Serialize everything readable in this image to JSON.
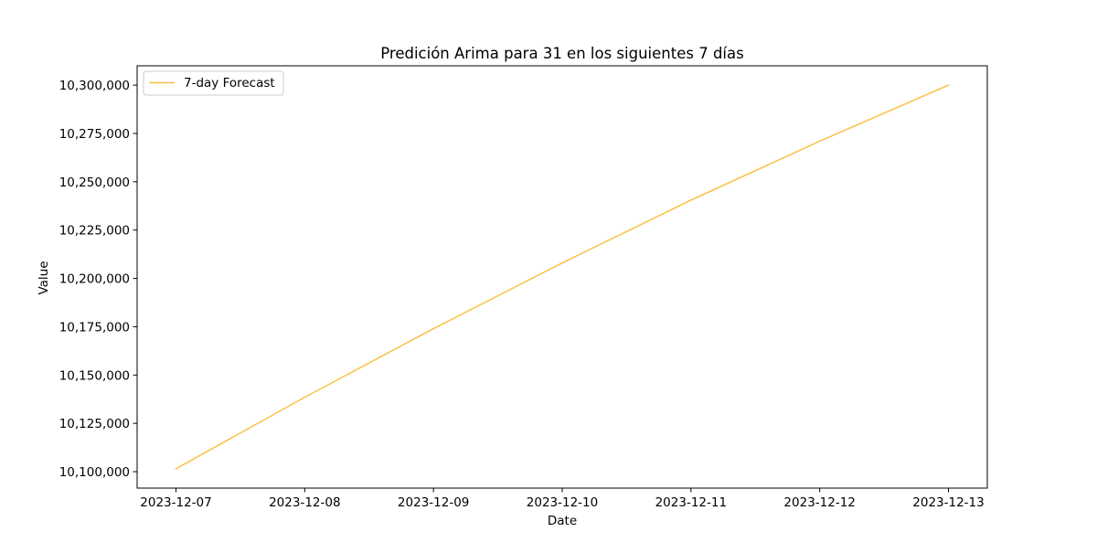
{
  "chart_data": {
    "type": "line",
    "title": "Predición Arima para 31 en los siguientes 7 días",
    "xlabel": "Date",
    "ylabel": "Value",
    "x": [
      "2023-12-07",
      "2023-12-08",
      "2023-12-09",
      "2023-12-10",
      "2023-12-11",
      "2023-12-12",
      "2023-12-13"
    ],
    "series": [
      {
        "name": "7-day Forecast",
        "color": "#fbc044",
        "values": [
          10101500,
          10138500,
          10174000,
          10208000,
          10240500,
          10271000,
          10300000
        ]
      }
    ],
    "yticks": [
      10100000,
      10125000,
      10150000,
      10175000,
      10200000,
      10225000,
      10250000,
      10275000,
      10300000
    ],
    "ytick_labels": [
      "10,100,000",
      "10,125,000",
      "10,150,000",
      "10,175,000",
      "10,200,000",
      "10,225,000",
      "10,250,000",
      "10,275,000",
      "10,300,000"
    ],
    "xtick_labels": [
      "2023-12-07",
      "2023-12-08",
      "2023-12-09",
      "2023-12-10",
      "2023-12-11",
      "2023-12-12",
      "2023-12-13"
    ],
    "ylim": [
      10091500,
      10310000
    ],
    "grid": false,
    "legend_position": "top-left"
  }
}
